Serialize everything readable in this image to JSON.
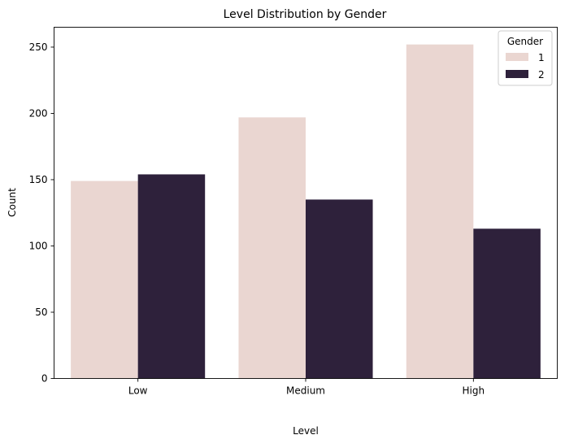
{
  "chart_data": {
    "type": "bar",
    "title": "Level Distribution by Gender",
    "xlabel": "Level",
    "ylabel": "Count",
    "categories": [
      "Low",
      "Medium",
      "High"
    ],
    "series": [
      {
        "name": "1",
        "values": [
          149,
          197,
          252
        ],
        "color": "#ead6d1"
      },
      {
        "name": "2",
        "values": [
          154,
          135,
          113
        ],
        "color": "#2e213b"
      }
    ],
    "ylim": [
      0,
      265
    ],
    "yticks": [
      0,
      50,
      100,
      150,
      200,
      250
    ],
    "legend": {
      "title": "Gender",
      "position": "top-right"
    },
    "grid": false
  }
}
